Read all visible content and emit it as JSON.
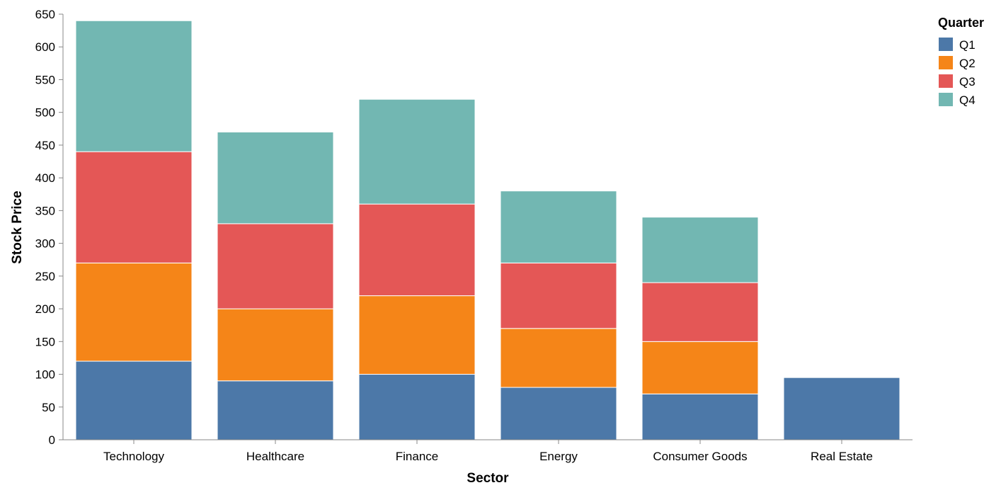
{
  "chart_data": {
    "type": "bar",
    "stacked": true,
    "title": "",
    "xlabel": "Sector",
    "ylabel": "Stock Price",
    "ylim": [
      0,
      650
    ],
    "yticks": [
      0,
      50,
      100,
      150,
      200,
      250,
      300,
      350,
      400,
      450,
      500,
      550,
      600,
      650
    ],
    "grid": false,
    "legend": {
      "title": "Quarter",
      "position": "top-right"
    },
    "categories": [
      "Technology",
      "Healthcare",
      "Finance",
      "Energy",
      "Consumer Goods",
      "Real Estate"
    ],
    "series": [
      {
        "name": "Q1",
        "color": "#4c78a8",
        "values": [
          120,
          90,
          100,
          80,
          70,
          95
        ]
      },
      {
        "name": "Q2",
        "color": "#f58518",
        "values": [
          150,
          110,
          120,
          90,
          80,
          0
        ]
      },
      {
        "name": "Q3",
        "color": "#e45756",
        "values": [
          170,
          130,
          140,
          100,
          90,
          0
        ]
      },
      {
        "name": "Q4",
        "color": "#72b7b2",
        "values": [
          200,
          140,
          160,
          110,
          100,
          0
        ]
      }
    ]
  }
}
